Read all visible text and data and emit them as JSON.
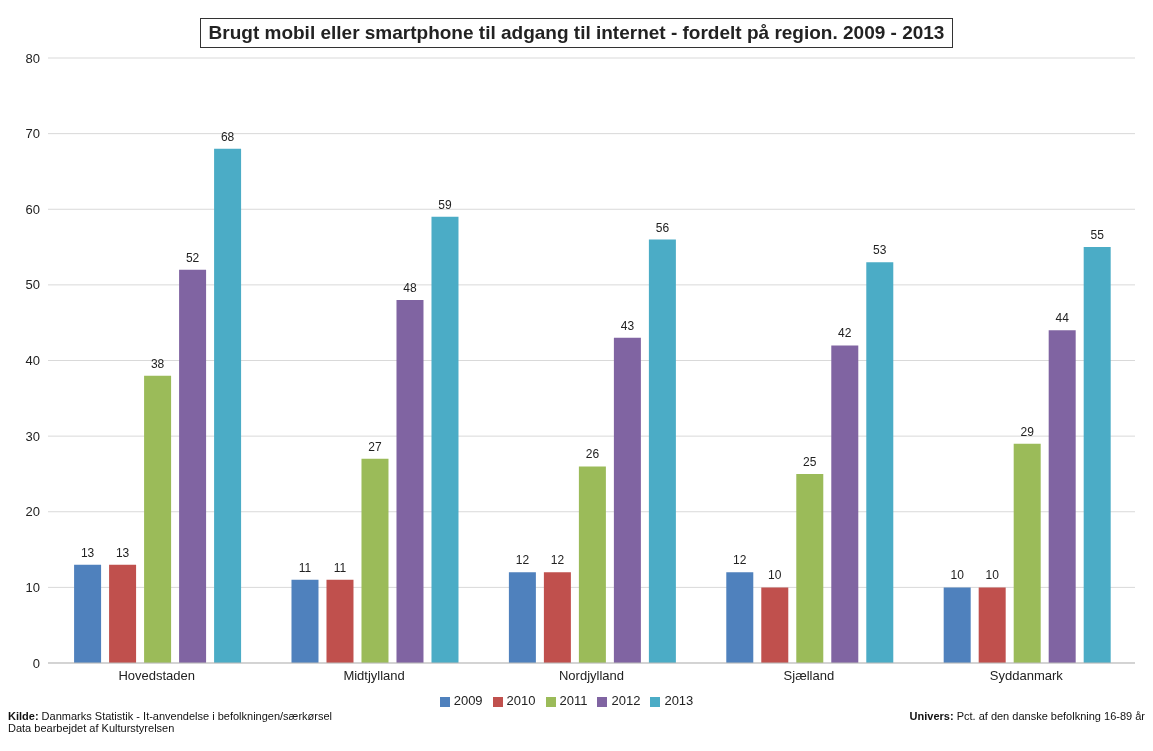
{
  "chart_data": {
    "type": "bar",
    "title": "Brugt mobil eller smartphone til adgang til internet - fordelt på region. 2009 - 2013",
    "categories": [
      "Hovedstaden",
      "Midtjylland",
      "Nordjylland",
      "Sjælland",
      "Syddanmark"
    ],
    "series": [
      {
        "name": "2009",
        "color": "#4f81bd",
        "values": [
          13,
          11,
          12,
          12,
          10
        ]
      },
      {
        "name": "2010",
        "color": "#c0504d",
        "values": [
          13,
          11,
          12,
          10,
          10
        ]
      },
      {
        "name": "2011",
        "color": "#9bbb59",
        "values": [
          38,
          27,
          26,
          25,
          29
        ]
      },
      {
        "name": "2012",
        "color": "#8064a2",
        "values": [
          52,
          48,
          43,
          42,
          44
        ]
      },
      {
        "name": "2013",
        "color": "#4bacc6",
        "values": [
          68,
          59,
          56,
          53,
          55
        ]
      }
    ],
    "ylim": [
      0,
      80
    ],
    "yticks": [
      0,
      10,
      20,
      30,
      40,
      50,
      60,
      70,
      80
    ],
    "grid": "y",
    "legend": "bottom",
    "data_labels": true,
    "annotations": [
      "Kilde: Danmarks Statistik - It-anvendelse i befolkningen/særkørsel",
      "Data bearbejdet af Kulturstyrelsen",
      "Univers: Pct. af den danske befolkning 16-89 år"
    ]
  }
}
